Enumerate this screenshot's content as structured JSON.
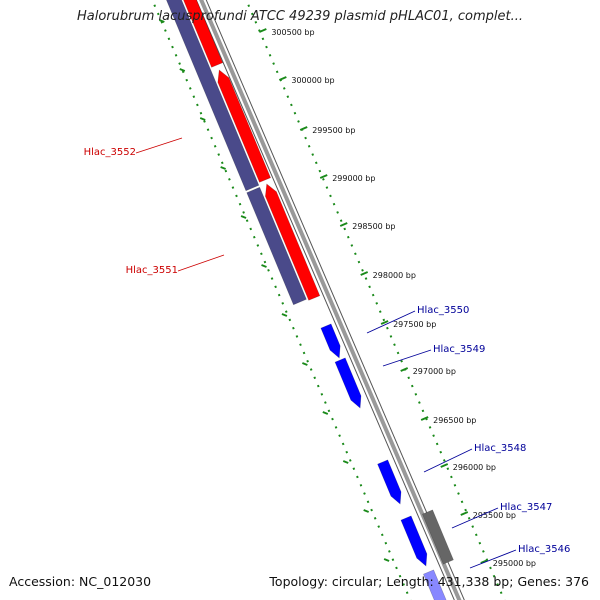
{
  "title": "Halorubrum lacusprofundi ATCC 49239 plasmid pHLAC01, complet...",
  "accession_label": "Accession:",
  "accession": "NC_012030",
  "topology_label": "Topology:",
  "topology": "circular",
  "length_label": "Length:",
  "length": "431,338 bp",
  "genes_label": "Genes:",
  "genes": "376",
  "colors": {
    "reverse_strand": "#ff0000",
    "forward_strand": "#0000ff",
    "cds_track": "#4a4a8a",
    "other_feature": "#666666",
    "backbone": "#999999",
    "scale_ticks": "#1a8a1a",
    "reverse_label": "#cc0000",
    "forward_label": "#000099"
  },
  "scale_ticks": [
    {
      "label": "300500 bp"
    },
    {
      "label": "300000 bp"
    },
    {
      "label": "299500 bp"
    },
    {
      "label": "299000 bp"
    },
    {
      "label": "298500 bp"
    },
    {
      "label": "298000 bp"
    },
    {
      "label": "297500 bp"
    },
    {
      "label": "297000 bp"
    },
    {
      "label": "296500 bp"
    },
    {
      "label": "296000 bp"
    },
    {
      "label": "295500 bp"
    },
    {
      "label": "295000 bp"
    }
  ],
  "gene_labels": [
    {
      "name": "Hlac_3552",
      "strand": "reverse"
    },
    {
      "name": "Hlac_3551",
      "strand": "reverse"
    },
    {
      "name": "Hlac_3550",
      "strand": "forward"
    },
    {
      "name": "Hlac_3549",
      "strand": "forward"
    },
    {
      "name": "Hlac_3548",
      "strand": "forward"
    },
    {
      "name": "Hlac_3547",
      "strand": "forward"
    },
    {
      "name": "Hlac_3546",
      "strand": "forward"
    }
  ]
}
